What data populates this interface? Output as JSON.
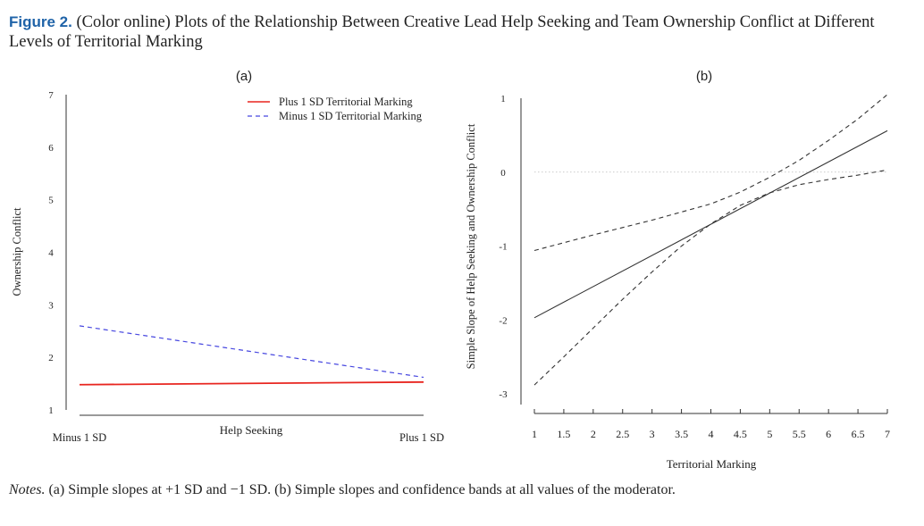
{
  "caption": {
    "label": "Figure 2.",
    "text": " (Color online) Plots of the Relationship Between Creative Lead Help Seeking and Team Ownership Conflict at Different Levels of Territorial Marking"
  },
  "notes": {
    "label": "Notes.",
    "text": " (a) Simple slopes at +1 SD and −1 SD. (b) Simple slopes and confidence bands at all values of the moderator."
  },
  "chart_data": [
    {
      "type": "line",
      "panel_label": "(a)",
      "xlabel": "Help Seeking",
      "ylabel": "Ownership Conflict",
      "categories": [
        "Minus 1 SD",
        "Plus 1 SD"
      ],
      "ylim": [
        1,
        7
      ],
      "yticks": [
        1,
        2,
        3,
        4,
        5,
        6,
        7
      ],
      "legend": "top-right",
      "series": [
        {
          "name": "Plus 1 SD Territorial Marking",
          "color": "#e8251f",
          "dash": "solid",
          "values": [
            1.48,
            1.53
          ]
        },
        {
          "name": "Minus 1 SD Territorial Marking",
          "color": "#4848e0",
          "dash": "dashed",
          "values": [
            2.6,
            1.62
          ]
        }
      ]
    },
    {
      "type": "line",
      "panel_label": "(b)",
      "xlabel": "Territorial Marking",
      "ylabel": "Simple Slope of Help Seeking and Ownership Conflict",
      "xlim": [
        1,
        7
      ],
      "ylim": [
        -3,
        1
      ],
      "xticks": [
        1,
        1.5,
        2,
        2.5,
        3,
        3.5,
        4,
        4.5,
        5,
        5.5,
        6,
        6.5,
        7
      ],
      "yticks": [
        -3,
        -2,
        -1,
        0,
        1
      ],
      "reference_line": 0,
      "series": [
        {
          "role": "estimate",
          "dash": "solid",
          "x": [
            1,
            7
          ],
          "y": [
            -1.97,
            0.56
          ]
        },
        {
          "role": "upper band",
          "dash": "dashed",
          "x": [
            1,
            2,
            3,
            4,
            4.5,
            5,
            5.5,
            6,
            6.5,
            7
          ],
          "y": [
            -1.06,
            -0.85,
            -0.65,
            -0.43,
            -0.27,
            -0.07,
            0.16,
            0.43,
            0.72,
            1.05
          ]
        },
        {
          "role": "lower band",
          "dash": "dashed",
          "x": [
            1,
            1.5,
            2,
            2.5,
            3,
            3.5,
            4,
            4.5,
            5,
            5.5,
            6,
            6.5,
            7
          ],
          "y": [
            -2.88,
            -2.5,
            -2.11,
            -1.72,
            -1.35,
            -1.0,
            -0.7,
            -0.45,
            -0.28,
            -0.17,
            -0.1,
            -0.04,
            0.03
          ]
        }
      ]
    }
  ]
}
